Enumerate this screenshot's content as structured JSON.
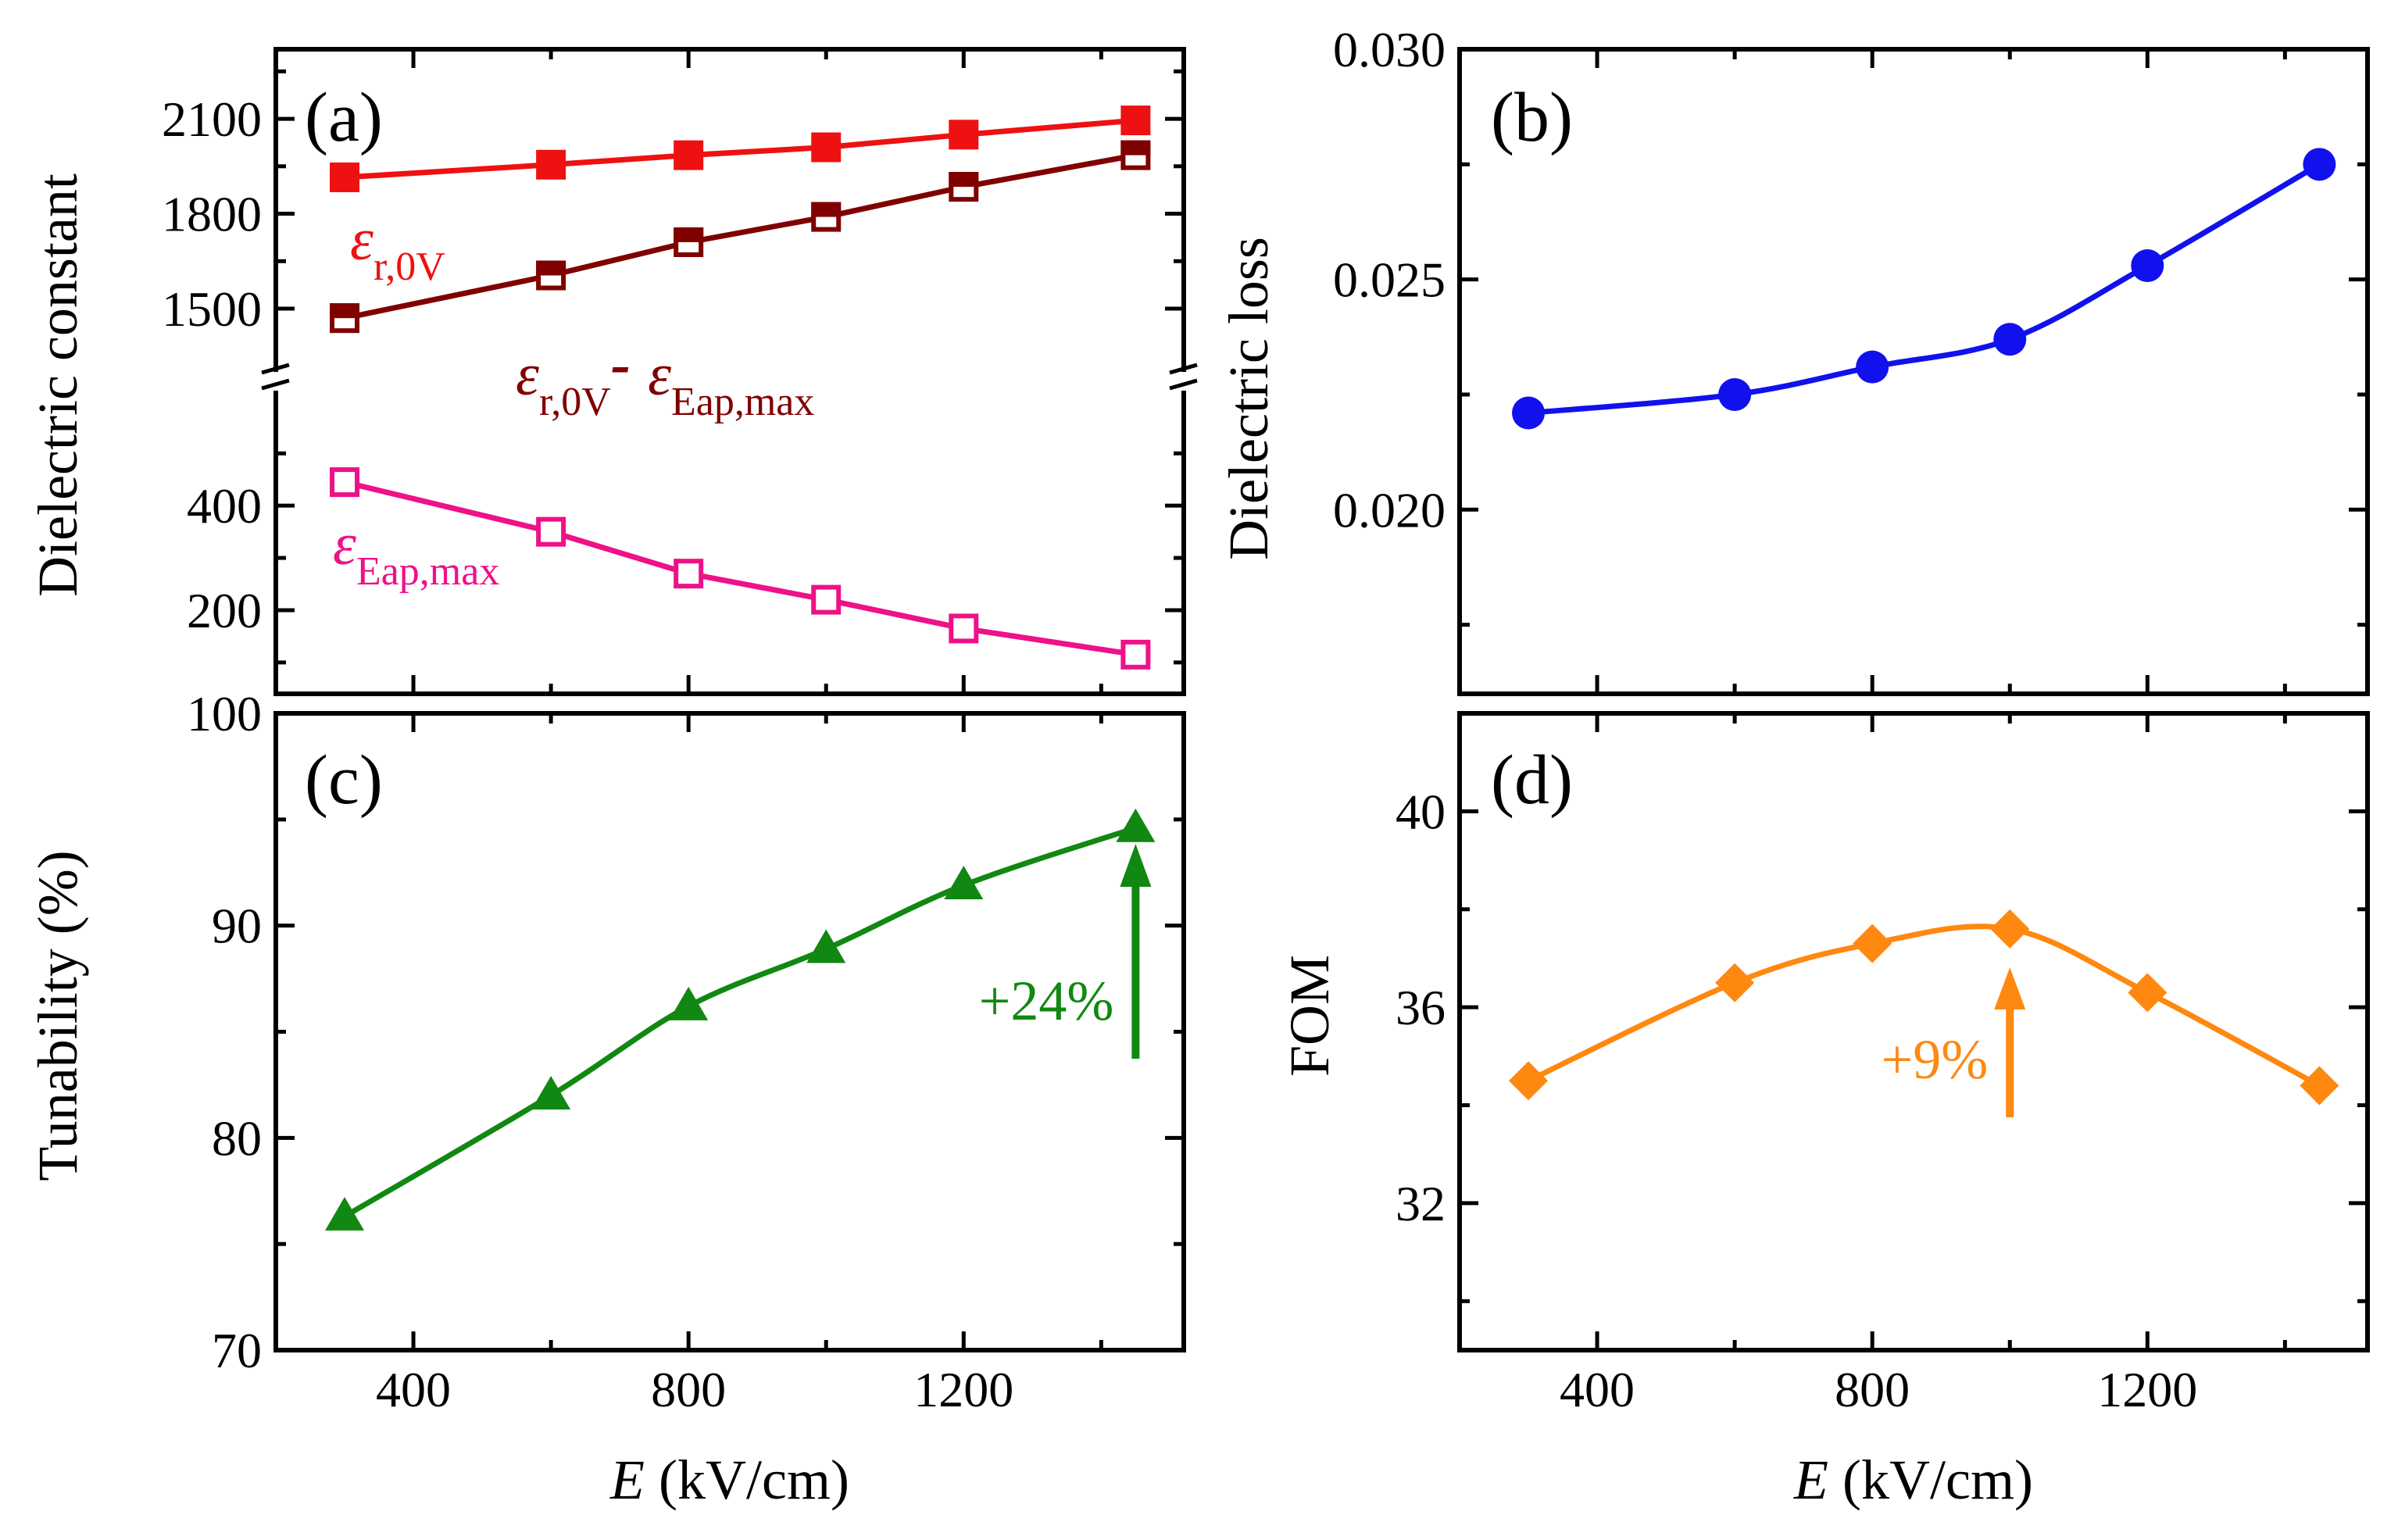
{
  "chart_data": [
    {
      "panel": "(a)",
      "type": "line",
      "xlabel": "E (kV/cm)",
      "ylabel": "Dielectric constant",
      "x": [
        300,
        600,
        800,
        1000,
        1200,
        1450
      ],
      "xticks": [
        "400",
        "800",
        "1200"
      ],
      "upper_axis": {
        "ylim": [
          1300,
          2320
        ],
        "ticks": [
          "1500",
          "1800",
          "2100"
        ]
      },
      "lower_axis": {
        "ylim": [
          40,
          620
        ],
        "ticks": [
          "200",
          "400"
        ]
      },
      "series": [
        {
          "name": "ε r,0V",
          "axis": "upper",
          "marker": "filled-square",
          "color": "#ee1111",
          "values": [
            1915,
            1955,
            1985,
            2010,
            2050,
            2095
          ]
        },
        {
          "name": "ε r,0V - ε Eap,max",
          "axis": "upper",
          "marker": "half-square",
          "color": "#800000",
          "values": [
            1470,
            1605,
            1710,
            1790,
            1885,
            1985
          ]
        },
        {
          "name": "ε Eap,max",
          "axis": "lower",
          "marker": "open-square",
          "color": "#ee1188",
          "values": [
            445,
            350,
            270,
            220,
            165,
            115
          ]
        }
      ],
      "labels": {
        "s1": {
          "sym": "ε",
          "sub": "r,0V"
        },
        "s2": {
          "sym1": "ε",
          "sub1": "r,0V",
          "dash": "-",
          "sym2": "ε",
          "sub2": "Eap,max"
        },
        "s3": {
          "sym": "ε",
          "sub": "Eap,max"
        }
      }
    },
    {
      "panel": "(b)",
      "type": "line",
      "xlabel": "E (kV/cm)",
      "ylabel": "Dielectric loss",
      "x": [
        300,
        600,
        800,
        1000,
        1200,
        1450
      ],
      "xticks": [
        "400",
        "800",
        "1200"
      ],
      "ylim": [
        0.016,
        0.03
      ],
      "yticks": [
        "0.020",
        "0.025",
        "0.030"
      ],
      "series": [
        {
          "name": "Dielectric loss",
          "marker": "circle",
          "color": "#1111ee",
          "values": [
            0.0221,
            0.0225,
            0.0231,
            0.0237,
            0.0253,
            0.0275
          ]
        }
      ]
    },
    {
      "panel": "(c)",
      "type": "line",
      "xlabel": "E (kV/cm)",
      "ylabel": "Tunability (%)",
      "x": [
        300,
        600,
        800,
        1000,
        1200,
        1450
      ],
      "xticks": [
        "400",
        "800",
        "1200"
      ],
      "ylim": [
        70,
        100
      ],
      "yticks": [
        "70",
        "80",
        "90",
        "100"
      ],
      "series": [
        {
          "name": "Tunability",
          "marker": "triangle",
          "color": "#118811",
          "values": [
            76.3,
            82.0,
            86.2,
            88.9,
            91.9,
            94.6
          ]
        }
      ],
      "annotation": {
        "text": "+24%",
        "x": 1450
      }
    },
    {
      "panel": "(d)",
      "type": "line",
      "xlabel": "E (kV/cm)",
      "ylabel": "FOM",
      "x": [
        300,
        600,
        800,
        1000,
        1200,
        1450
      ],
      "xticks": [
        "400",
        "800",
        "1200"
      ],
      "ylim": [
        29,
        42
      ],
      "yticks": [
        "32",
        "36",
        "40"
      ],
      "series": [
        {
          "name": "FOM",
          "marker": "diamond",
          "color": "#ff8811",
          "values": [
            34.5,
            36.5,
            37.3,
            37.6,
            36.3,
            34.4
          ]
        }
      ],
      "annotation": {
        "text": "+9%",
        "x": 1000
      }
    }
  ]
}
